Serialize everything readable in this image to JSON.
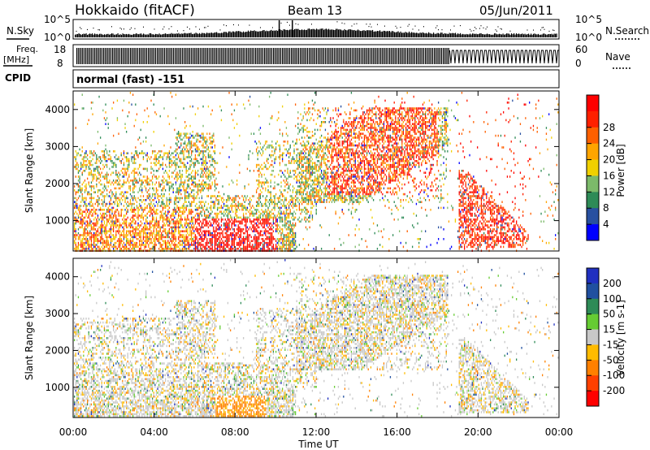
{
  "header": {
    "station": "Hokkaido (fitACF)",
    "beam": "Beam 13",
    "date": "05/Jun/2011"
  },
  "noise_panel": {
    "left_label": "N.Sky",
    "right_label": "N.Search",
    "left_ticks": [
      "10^5",
      "10^0"
    ],
    "right_ticks": [
      "10^5",
      "10^0"
    ]
  },
  "freq_panel": {
    "left_label": "Freq.",
    "left_unit": "[MHz]",
    "right_label": "Nave",
    "left_ticks": [
      "18",
      "8"
    ],
    "right_ticks": [
      "60",
      "0"
    ]
  },
  "cpid": {
    "label": "CPID",
    "value": "normal (fast) -151"
  },
  "x_axis": {
    "label": "Time UT",
    "ticks": [
      "00:00",
      "04:00",
      "08:00",
      "12:00",
      "16:00",
      "20:00",
      "00:00"
    ]
  },
  "chart_data": [
    {
      "type": "heatmap",
      "name": "power",
      "ylabel": "Slant Range [km]",
      "ylim": [
        180,
        4500
      ],
      "yticks": [
        "1000",
        "2000",
        "3000",
        "4000"
      ],
      "xlim_hours": [
        0,
        24
      ],
      "colorbar": {
        "label": "Power [dB]",
        "ticks": [
          "4",
          "8",
          "12",
          "16",
          "20",
          "24",
          "28"
        ],
        "colors": [
          "#0000ff",
          "#2850a0",
          "#2e8b57",
          "#7cba6a",
          "#f0d000",
          "#ffa500",
          "#ff6000",
          "#ff2000",
          "#ff0000"
        ]
      }
    },
    {
      "type": "heatmap",
      "name": "velocity",
      "ylabel": "Slant Range [km]",
      "ylim": [
        180,
        4500
      ],
      "yticks": [
        "1000",
        "2000",
        "3000",
        "4000"
      ],
      "xlim_hours": [
        0,
        24
      ],
      "colorbar": {
        "label": "Velocity [m s-1]",
        "ticks": [
          "200",
          "100",
          "50",
          "15",
          "-15",
          "-50",
          "-100",
          "-200"
        ],
        "colors": [
          "#2030c0",
          "#2050a0",
          "#2e8b57",
          "#66cc33",
          "#c8c8c8",
          "#ffbb00",
          "#ff8000",
          "#ff4000",
          "#ff0000"
        ]
      }
    }
  ]
}
